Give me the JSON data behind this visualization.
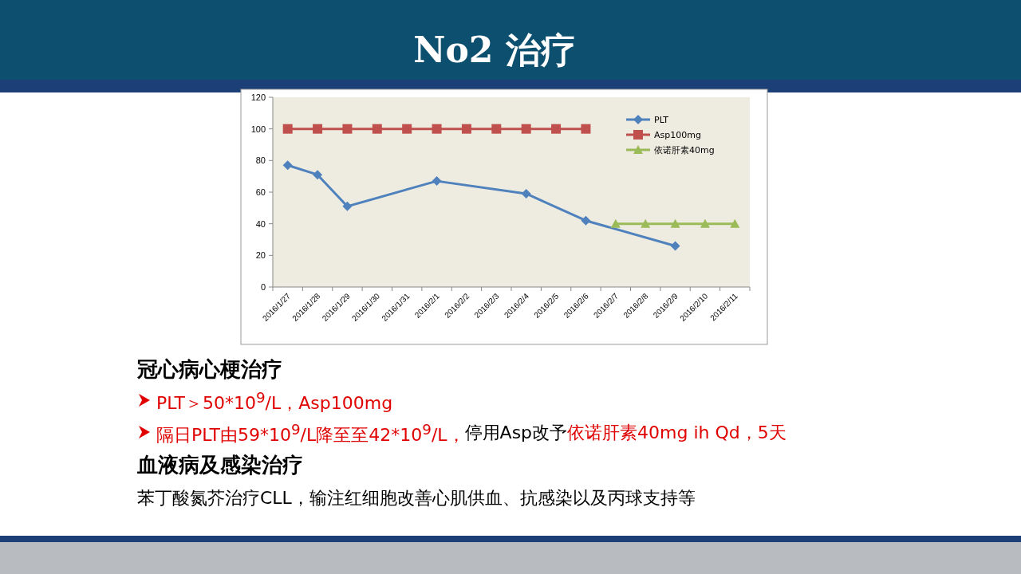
{
  "chart_data": {
    "type": "line",
    "title": "No2 治疗",
    "categories": [
      "2016/1/27",
      "2016/1/28",
      "2016/1/29",
      "2016/1/30",
      "2016/1/31",
      "2016/2/1",
      "2016/2/2",
      "2016/2/3",
      "2016/2/4",
      "2016/2/5",
      "2016/2/6",
      "2016/2/7",
      "2016/2/8",
      "2016/2/9",
      "2016/2/10",
      "2016/2/11"
    ],
    "series": [
      {
        "name": "PLT",
        "color": "#4f81bd",
        "marker": "diamond",
        "values": [
          77,
          71,
          51,
          null,
          null,
          67,
          null,
          null,
          59,
          null,
          42,
          null,
          null,
          26,
          null,
          null
        ]
      },
      {
        "name": "Asp100mg",
        "color": "#c0504d",
        "marker": "square",
        "values": [
          100,
          100,
          100,
          100,
          100,
          100,
          100,
          100,
          100,
          100,
          100,
          null,
          null,
          null,
          null,
          null
        ]
      },
      {
        "name": "依诺肝素40mg",
        "color": "#9bbb59",
        "marker": "triangle",
        "values": [
          null,
          null,
          null,
          null,
          null,
          null,
          null,
          null,
          null,
          null,
          null,
          40,
          40,
          40,
          40,
          40
        ]
      }
    ],
    "ylim": [
      0,
      120
    ],
    "yticks": [
      0,
      20,
      40,
      60,
      80,
      100,
      120
    ],
    "grid": false,
    "legend": "top right",
    "annotations": [
      "冠心病心梗治疗",
      "PLT＞50*10$^{9}$/L，Asp100mg",
      "隔日PLT由59*10$^{9}$/L降至至42*10$^{9}$/L，",
      "停用Asp改予",
      "依诺肝素40mg ih Qd，5天",
      "血液病及感染治疗",
      "苯丁酸氮芥治疗CLL，输注红细胞改善心肌供血、抗感染以及丙球支持等"
    ]
  }
}
